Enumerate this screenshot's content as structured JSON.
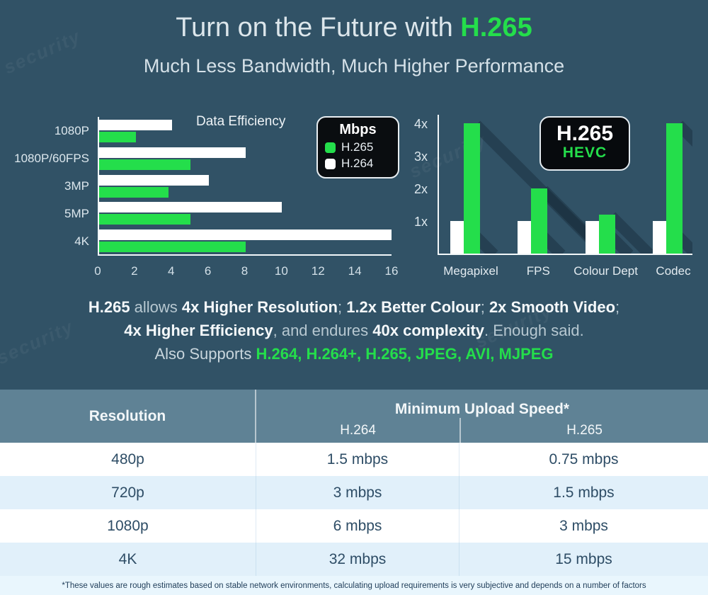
{
  "title": {
    "prefix": "Turn on the Future with ",
    "highlight": "H.265"
  },
  "subtitle": "Much Less Bandwidth, Much Higher Performance",
  "watermark": "security",
  "colors": {
    "background": "#315266",
    "accent_green": "#24DE4B",
    "bar_white": "#FFFFFF",
    "table_header_bg": "#5F8295",
    "table_row_alt": "#E1F0FA",
    "table_footnote_bg": "#E9F6FD",
    "table_text": "#2E4D66",
    "badge_bg": "#070A0D",
    "bar_shadow": "#263E50"
  },
  "chart_data": [
    {
      "type": "bar",
      "orientation": "horizontal",
      "title": "Data Efficiency",
      "categories": [
        "1080P",
        "1080P/60FPS",
        "3MP",
        "5MP",
        "4K"
      ],
      "series": [
        {
          "name": "H.264",
          "color": "#FFFFFF",
          "values": [
            4,
            8,
            6,
            10,
            16
          ]
        },
        {
          "name": "H.265",
          "color": "#24DE4B",
          "values": [
            2,
            5,
            3.8,
            5,
            8
          ]
        }
      ],
      "xlim": [
        0,
        16
      ],
      "xticks": [
        0,
        2,
        4,
        6,
        8,
        10,
        12,
        14,
        16
      ],
      "unit": "Mbps",
      "grid": false,
      "legend": {
        "title": "Mbps",
        "position": "top-right",
        "entries": [
          {
            "label": "H.265",
            "color": "#24DE4B"
          },
          {
            "label": "H.264",
            "color": "#FFFFFF"
          }
        ]
      }
    },
    {
      "type": "bar",
      "orientation": "vertical",
      "title": "",
      "categories": [
        "Megapixel",
        "FPS",
        "Colour Dept",
        "Codec"
      ],
      "series": [
        {
          "name": "H.264",
          "color": "#FFFFFF",
          "values": [
            1,
            1,
            1,
            1
          ]
        },
        {
          "name": "H.265",
          "color": "#24DE4B",
          "values": [
            4,
            2,
            1.2,
            4
          ]
        }
      ],
      "ylim": [
        0,
        4.3
      ],
      "ytick_values": [
        1,
        2,
        3,
        4
      ],
      "ytick_labels": [
        "1x",
        "2x",
        "3x",
        "4x"
      ],
      "grid": false,
      "badge": {
        "line1": "H.265",
        "line2": "HEVC"
      }
    }
  ],
  "claims": {
    "line1": [
      {
        "t": "H.265",
        "b": true
      },
      {
        "t": " allows ",
        "b": false
      },
      {
        "t": "4x Higher Resolution",
        "b": true
      },
      {
        "t": "; ",
        "b": false
      },
      {
        "t": "1.2x Better Colour",
        "b": true
      },
      {
        "t": "; ",
        "b": false
      },
      {
        "t": "2x Smooth Video",
        "b": true
      },
      {
        "t": ";",
        "b": false
      }
    ],
    "line2": [
      {
        "t": "4x Higher Efficiency",
        "b": true
      },
      {
        "t": ", and endures ",
        "b": false
      },
      {
        "t": "40x complexity",
        "b": true
      },
      {
        "t": ". Enough said.",
        "b": false
      }
    ],
    "supports_prefix": "Also Supports ",
    "supports_codecs": "H.264, H.264+, H.265, JPEG, AVI, MJPEG"
  },
  "table": {
    "col1_header": "Resolution",
    "group_header": "Minimum Upload Speed*",
    "sub_headers": [
      "H.264",
      "H.265"
    ],
    "rows": [
      {
        "resolution": "480p",
        "h264": "1.5 mbps",
        "h265": "0.75 mbps"
      },
      {
        "resolution": "720p",
        "h264": "3 mbps",
        "h265": "1.5 mbps"
      },
      {
        "resolution": "1080p",
        "h264": "6 mbps",
        "h265": "3 mbps"
      },
      {
        "resolution": "4K",
        "h264": "32 mbps",
        "h265": "15 mbps"
      }
    ],
    "footnote": "*These values are rough estimates based on stable network environments, calculating upload requirements is very subjective and depends on a number of factors"
  }
}
